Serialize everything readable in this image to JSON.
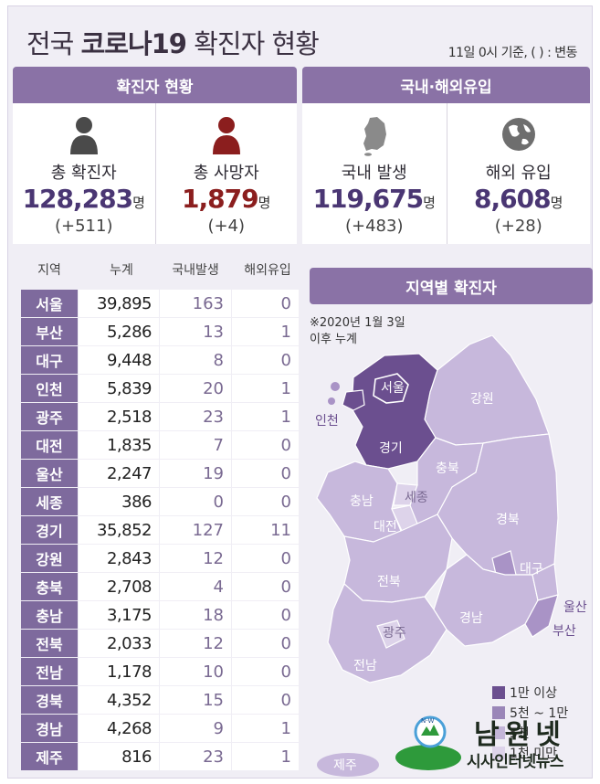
{
  "header": {
    "title_prefix": "전국 ",
    "title_bold": "코로나19",
    "title_suffix": " 확진자 현황",
    "subtitle": "11일 0시 기준, ( ) : 변동"
  },
  "summary": {
    "section_label": "확진자 현황",
    "total_confirmed": {
      "label": "총 확진자",
      "value": "128,283",
      "unit": "명",
      "change": "(+511)"
    },
    "total_deaths": {
      "label": "총 사망자",
      "value": "1,879",
      "unit": "명",
      "change": "(+4)"
    }
  },
  "origin": {
    "section_label": "국내·해외유입",
    "domestic": {
      "label": "국내 발생",
      "value": "119,675",
      "unit": "명",
      "change": "(+483)"
    },
    "overseas": {
      "label": "해외 유입",
      "value": "8,608",
      "unit": "명",
      "change": "(+28)"
    }
  },
  "table": {
    "headers": [
      "지역",
      "누계",
      "국내발생",
      "해외유입"
    ],
    "rows": [
      {
        "region": "서울",
        "total": "39,895",
        "domestic": "163",
        "overseas": "0"
      },
      {
        "region": "부산",
        "total": "5,286",
        "domestic": "13",
        "overseas": "1"
      },
      {
        "region": "대구",
        "total": "9,448",
        "domestic": "8",
        "overseas": "0"
      },
      {
        "region": "인천",
        "total": "5,839",
        "domestic": "20",
        "overseas": "1"
      },
      {
        "region": "광주",
        "total": "2,518",
        "domestic": "23",
        "overseas": "1"
      },
      {
        "region": "대전",
        "total": "1,835",
        "domestic": "7",
        "overseas": "0"
      },
      {
        "region": "울산",
        "total": "2,247",
        "domestic": "19",
        "overseas": "0"
      },
      {
        "region": "세종",
        "total": "386",
        "domestic": "0",
        "overseas": "0"
      },
      {
        "region": "경기",
        "total": "35,852",
        "domestic": "127",
        "overseas": "11"
      },
      {
        "region": "강원",
        "total": "2,843",
        "domestic": "12",
        "overseas": "0"
      },
      {
        "region": "충북",
        "total": "2,708",
        "domestic": "4",
        "overseas": "0"
      },
      {
        "region": "충남",
        "total": "3,175",
        "domestic": "18",
        "overseas": "0"
      },
      {
        "region": "전북",
        "total": "2,033",
        "domestic": "12",
        "overseas": "0"
      },
      {
        "region": "전남",
        "total": "1,178",
        "domestic": "10",
        "overseas": "0"
      },
      {
        "region": "경북",
        "total": "4,352",
        "domestic": "15",
        "overseas": "0"
      },
      {
        "region": "경남",
        "total": "4,268",
        "domestic": "9",
        "overseas": "1"
      },
      {
        "region": "제주",
        "total": "816",
        "domestic": "23",
        "overseas": "1"
      }
    ]
  },
  "map": {
    "section_label": "지역별 확진자",
    "note_line1": "※2020년 1월 3일",
    "note_line2": "이후 누계",
    "labels": {
      "seoul": "서울",
      "incheon": "인천",
      "gyeonggi": "경기",
      "gangwon": "강원",
      "chungbuk": "충북",
      "sejong": "세종",
      "chungnam": "충남",
      "daejeon": "대전",
      "gyeongbuk": "경북",
      "daegu": "대구",
      "jeonbuk": "전북",
      "ulsan": "울산",
      "busan": "부산",
      "gyeongnam": "경남",
      "gwangju": "광주",
      "jeonnam": "전남",
      "jeju": "제주"
    },
    "legend": [
      {
        "label": "1만 이상",
        "color": "#6b4f8f"
      },
      {
        "label": "5천 ~ 1만",
        "color": "#9a86b8"
      },
      {
        "label": "5천",
        "color": "#c3b5d8"
      },
      {
        "label": "1천 미만",
        "color": "#ddd3ea"
      }
    ],
    "colors": {
      "high": "#6b4f8f",
      "mid": "#a993c6",
      "low": "#c7b8dc",
      "lowest": "#ddd3ea"
    }
  },
  "watermark": {
    "logo_text": "N·W",
    "name": "남원넷",
    "sub": "시사인터넷뉴스"
  }
}
